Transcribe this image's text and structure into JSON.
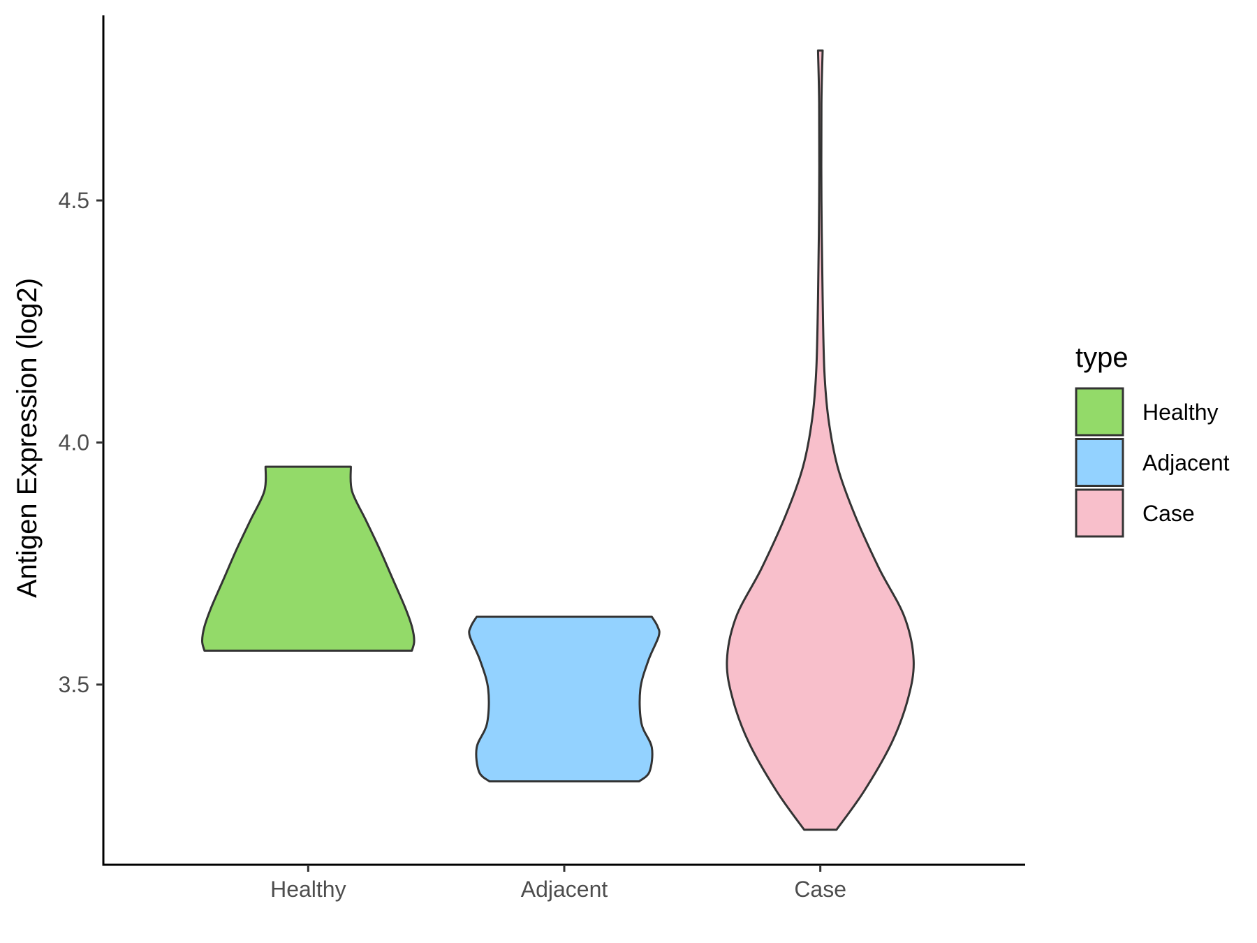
{
  "chart_data": {
    "type": "violin",
    "title": "",
    "xlabel": "",
    "ylabel": "Antigen Expression (log2)",
    "categories": [
      "Healthy",
      "Adjacent",
      "Case"
    ],
    "y_ticks": [
      {
        "value": 3.5,
        "label": "3.5"
      },
      {
        "value": 4.0,
        "label": "4.0"
      },
      {
        "value": 4.5,
        "label": "4.5"
      }
    ],
    "ylim": [
      3.13,
      4.88
    ],
    "grid": false,
    "legend": {
      "title": "type",
      "position": "right",
      "entries": [
        {
          "label": "Healthy",
          "color": "#93DA69"
        },
        {
          "label": "Adjacent",
          "color": "#93D2FF"
        },
        {
          "label": "Case",
          "color": "#F8BFCB"
        }
      ]
    },
    "series": [
      {
        "category": "Healthy",
        "color": "#93DA69",
        "min": 3.57,
        "max": 3.95,
        "density": [
          [
            3.57,
            0.9
          ],
          [
            3.59,
            0.92
          ],
          [
            3.62,
            0.9
          ],
          [
            3.66,
            0.84
          ],
          [
            3.72,
            0.73
          ],
          [
            3.78,
            0.62
          ],
          [
            3.84,
            0.5
          ],
          [
            3.9,
            0.38
          ],
          [
            3.95,
            0.37
          ]
        ]
      },
      {
        "category": "Adjacent",
        "color": "#93D2FF",
        "min": 3.3,
        "max": 3.64,
        "density": [
          [
            3.3,
            0.65
          ],
          [
            3.32,
            0.74
          ],
          [
            3.37,
            0.76
          ],
          [
            3.42,
            0.67
          ],
          [
            3.49,
            0.66
          ],
          [
            3.55,
            0.73
          ],
          [
            3.6,
            0.82
          ],
          [
            3.62,
            0.81
          ],
          [
            3.64,
            0.76
          ]
        ]
      },
      {
        "category": "Case",
        "color": "#F8BFCB",
        "min": 3.2,
        "max": 4.81,
        "density": [
          [
            3.2,
            0.14
          ],
          [
            3.28,
            0.38
          ],
          [
            3.38,
            0.62
          ],
          [
            3.47,
            0.76
          ],
          [
            3.55,
            0.81
          ],
          [
            3.64,
            0.73
          ],
          [
            3.74,
            0.51
          ],
          [
            3.85,
            0.3
          ],
          [
            3.95,
            0.15
          ],
          [
            4.05,
            0.07
          ],
          [
            4.15,
            0.035
          ],
          [
            4.3,
            0.02
          ],
          [
            4.5,
            0.01
          ],
          [
            4.7,
            0.01
          ],
          [
            4.81,
            0.02
          ]
        ]
      }
    ]
  }
}
